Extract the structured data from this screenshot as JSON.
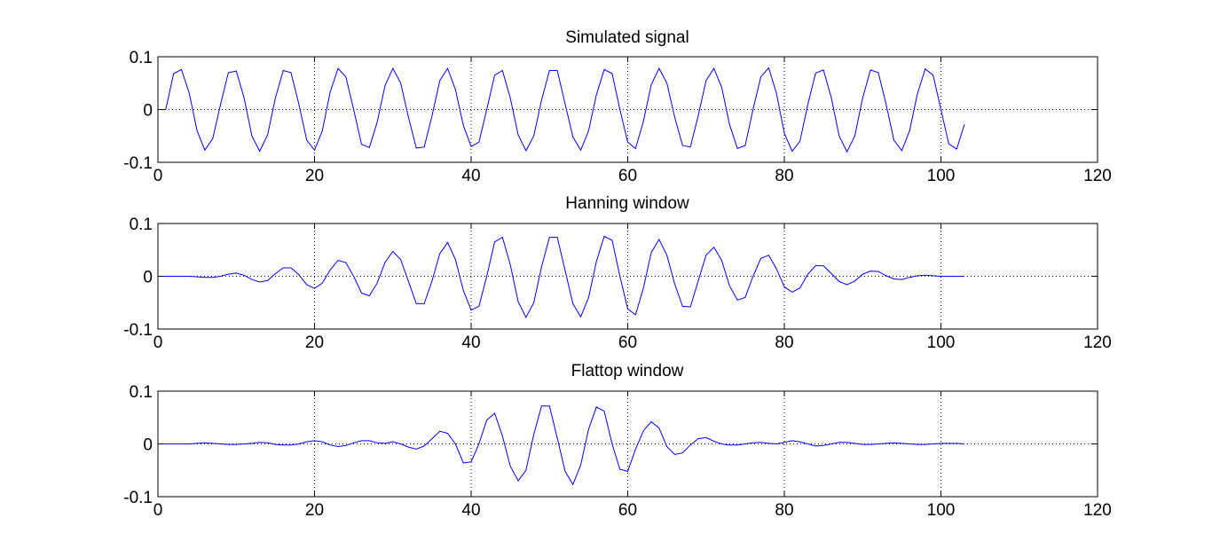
{
  "chart_data": [
    {
      "type": "line",
      "title": "Simulated signal",
      "xlim": [
        0,
        120
      ],
      "ylim": [
        -0.1,
        0.1
      ],
      "xticks": [
        0,
        20,
        40,
        60,
        80,
        100,
        120
      ],
      "yticks": [
        -0.1,
        0,
        0.1
      ],
      "xtick_labels": [
        "0",
        "20",
        "40",
        "60",
        "80",
        "100",
        "120"
      ],
      "ytick_labels": [
        "-0.1",
        "0",
        "0.1"
      ],
      "grid": true,
      "series": [
        {
          "color": "#0000ff",
          "x": [
            0,
            1,
            2,
            3,
            4,
            5,
            6,
            7,
            8,
            9,
            10,
            11,
            12,
            13,
            14,
            15,
            16,
            17,
            18,
            19,
            20,
            21,
            22,
            23,
            24,
            25,
            26,
            27,
            28,
            29,
            30,
            31,
            32,
            33,
            34,
            35,
            36,
            37,
            38,
            39,
            40,
            41,
            42,
            43,
            44,
            45,
            46,
            47,
            48,
            49,
            50,
            51,
            52,
            53,
            54,
            55,
            56,
            57,
            58,
            59,
            60,
            61,
            62,
            63,
            64,
            65,
            66,
            67,
            68,
            69,
            70,
            71,
            72,
            73,
            74,
            75,
            76,
            77,
            78,
            79,
            80,
            81,
            82,
            83,
            84,
            85,
            86,
            87,
            88,
            89,
            90,
            91,
            92,
            93,
            94,
            95,
            96,
            97,
            98,
            99,
            100,
            101,
            102,
            103
          ],
          "y": [
            0.0,
            0.0,
            0.068,
            0.076,
            0.031,
            -0.04,
            -0.077,
            -0.055,
            0.01,
            0.07,
            0.073,
            0.022,
            -0.05,
            -0.079,
            -0.048,
            0.022,
            0.074,
            0.07,
            0.01,
            -0.058,
            -0.077,
            -0.04,
            0.033,
            0.078,
            0.062,
            0.0,
            -0.066,
            -0.072,
            -0.024,
            0.045,
            0.078,
            0.05,
            -0.015,
            -0.073,
            -0.071,
            -0.012,
            0.055,
            0.078,
            0.038,
            -0.03,
            -0.07,
            -0.062,
            0.0,
            0.065,
            0.074,
            0.022,
            -0.048,
            -0.078,
            -0.05,
            0.018,
            0.074,
            0.074,
            0.011,
            -0.052,
            -0.077,
            -0.04,
            0.028,
            0.076,
            0.068,
            0.0,
            -0.062,
            -0.074,
            -0.022,
            0.047,
            0.078,
            0.05,
            -0.015,
            -0.068,
            -0.071,
            -0.012,
            0.055,
            0.078,
            0.042,
            -0.028,
            -0.074,
            -0.068,
            0.0,
            0.062,
            0.079,
            0.03,
            -0.045,
            -0.079,
            -0.06,
            0.01,
            0.069,
            0.075,
            0.022,
            -0.05,
            -0.08,
            -0.05,
            0.022,
            0.075,
            0.07,
            0.01,
            -0.058,
            -0.078,
            -0.04,
            0.03,
            0.077,
            0.065,
            0.0,
            -0.065,
            -0.075,
            -0.028
          ]
        }
      ]
    },
    {
      "type": "line",
      "title": "Hanning window",
      "xlim": [
        0,
        120
      ],
      "ylim": [
        -0.1,
        0.1
      ],
      "xticks": [
        0,
        20,
        40,
        60,
        80,
        100,
        120
      ],
      "yticks": [
        -0.1,
        0,
        0.1
      ],
      "xtick_labels": [
        "0",
        "20",
        "40",
        "60",
        "80",
        "100",
        "120"
      ],
      "ytick_labels": [
        "-0.1",
        "0",
        "0.1"
      ],
      "grid": true,
      "series": [
        {
          "color": "#0000ff",
          "x": [
            0,
            1,
            2,
            3,
            4,
            5,
            6,
            7,
            8,
            9,
            10,
            11,
            12,
            13,
            14,
            15,
            16,
            17,
            18,
            19,
            20,
            21,
            22,
            23,
            24,
            25,
            26,
            27,
            28,
            29,
            30,
            31,
            32,
            33,
            34,
            35,
            36,
            37,
            38,
            39,
            40,
            41,
            42,
            43,
            44,
            45,
            46,
            47,
            48,
            49,
            50,
            51,
            52,
            53,
            54,
            55,
            56,
            57,
            58,
            59,
            60,
            61,
            62,
            63,
            64,
            65,
            66,
            67,
            68,
            69,
            70,
            71,
            72,
            73,
            74,
            75,
            76,
            77,
            78,
            79,
            80,
            81,
            82,
            83,
            84,
            85,
            86,
            87,
            88,
            89,
            90,
            91,
            92,
            93,
            94,
            95,
            96,
            97,
            98,
            99,
            100,
            101,
            102,
            103
          ],
          "y": [
            0.0,
            0.0,
            0.0,
            0.0,
            0.0,
            -0.001,
            -0.002,
            -0.002,
            0.0,
            0.004,
            0.006,
            0.002,
            -0.006,
            -0.011,
            -0.008,
            0.005,
            0.016,
            0.016,
            0.003,
            -0.016,
            -0.023,
            -0.013,
            0.012,
            0.03,
            0.026,
            0.0,
            -0.032,
            -0.037,
            -0.013,
            0.026,
            0.047,
            0.032,
            -0.01,
            -0.052,
            -0.052,
            -0.009,
            0.043,
            0.064,
            0.032,
            -0.027,
            -0.064,
            -0.057,
            0.0,
            0.065,
            0.074,
            0.022,
            -0.048,
            -0.078,
            -0.05,
            0.018,
            0.074,
            0.074,
            0.011,
            -0.052,
            -0.077,
            -0.04,
            0.028,
            0.076,
            0.068,
            0.0,
            -0.062,
            -0.073,
            -0.022,
            0.045,
            0.07,
            0.04,
            -0.015,
            -0.057,
            -0.058,
            -0.009,
            0.04,
            0.055,
            0.03,
            -0.018,
            -0.045,
            -0.04,
            0.0,
            0.034,
            0.04,
            0.014,
            -0.02,
            -0.03,
            -0.022,
            0.004,
            0.02,
            0.02,
            0.005,
            -0.01,
            -0.016,
            -0.009,
            0.004,
            0.01,
            0.009,
            0.001,
            -0.005,
            -0.006,
            -0.002,
            0.001,
            0.002,
            0.001,
            0.0,
            0.0,
            0.0,
            0.0
          ]
        }
      ]
    },
    {
      "type": "line",
      "title": "Flattop window",
      "xlim": [
        0,
        120
      ],
      "ylim": [
        -0.1,
        0.1
      ],
      "xticks": [
        0,
        20,
        40,
        60,
        80,
        100,
        120
      ],
      "yticks": [
        -0.1,
        0,
        0.1
      ],
      "xtick_labels": [
        "0",
        "20",
        "40",
        "60",
        "80",
        "100",
        "120"
      ],
      "ytick_labels": [
        "-0.1",
        "0",
        "0.1"
      ],
      "grid": true,
      "series": [
        {
          "color": "#0000ff",
          "x": [
            0,
            1,
            2,
            3,
            4,
            5,
            6,
            7,
            8,
            9,
            10,
            11,
            12,
            13,
            14,
            15,
            16,
            17,
            18,
            19,
            20,
            21,
            22,
            23,
            24,
            25,
            26,
            27,
            28,
            29,
            30,
            31,
            32,
            33,
            34,
            35,
            36,
            37,
            38,
            39,
            40,
            41,
            42,
            43,
            44,
            45,
            46,
            47,
            48,
            49,
            50,
            51,
            52,
            53,
            54,
            55,
            56,
            57,
            58,
            59,
            60,
            61,
            62,
            63,
            64,
            65,
            66,
            67,
            68,
            69,
            70,
            71,
            72,
            73,
            74,
            75,
            76,
            77,
            78,
            79,
            80,
            81,
            82,
            83,
            84,
            85,
            86,
            87,
            88,
            89,
            90,
            91,
            92,
            93,
            94,
            95,
            96,
            97,
            98,
            99,
            100,
            101,
            102,
            103
          ],
          "y": [
            0.0,
            0.0,
            0.0,
            0.0,
            0.0,
            0.001,
            0.002,
            0.001,
            0.0,
            -0.001,
            -0.001,
            0.0,
            0.001,
            0.003,
            0.002,
            -0.001,
            -0.002,
            -0.002,
            0.0,
            0.004,
            0.006,
            0.004,
            -0.002,
            -0.005,
            -0.003,
            0.002,
            0.006,
            0.006,
            0.002,
            0.001,
            0.004,
            0.0,
            -0.006,
            -0.01,
            -0.004,
            0.01,
            0.024,
            0.02,
            0.0,
            -0.036,
            -0.034,
            0.0,
            0.045,
            0.058,
            0.015,
            -0.042,
            -0.07,
            -0.05,
            0.018,
            0.072,
            0.072,
            0.011,
            -0.052,
            -0.077,
            -0.04,
            0.028,
            0.07,
            0.062,
            0.0,
            -0.048,
            -0.052,
            -0.01,
            0.025,
            0.042,
            0.03,
            -0.005,
            -0.02,
            -0.017,
            -0.002,
            0.01,
            0.012,
            0.005,
            0.0,
            -0.002,
            -0.002,
            0.0,
            0.002,
            0.003,
            0.001,
            0.0,
            0.003,
            0.006,
            0.004,
            0.0,
            -0.004,
            -0.003,
            0.0,
            0.003,
            0.003,
            0.001,
            -0.001,
            -0.001,
            0.0,
            0.001,
            0.002,
            0.001,
            0.0,
            -0.001,
            -0.001,
            0.0,
            0.001,
            0.001,
            0.001,
            0.0
          ]
        }
      ]
    }
  ]
}
